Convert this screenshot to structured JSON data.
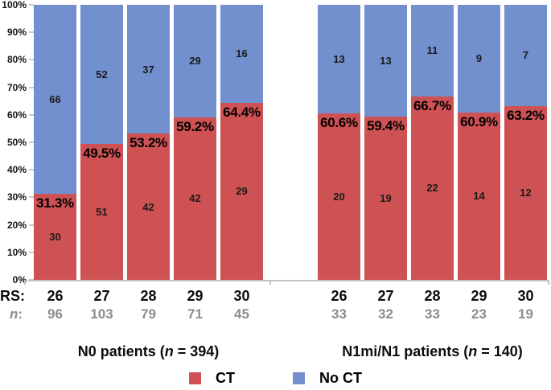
{
  "chart_data": {
    "type": "bar",
    "stacked": true,
    "orientation": "vertical",
    "grid": false,
    "ylim": [
      0,
      100
    ],
    "y_ticks": [
      "0%",
      "10%",
      "20%",
      "30%",
      "40%",
      "50%",
      "60%",
      "70%",
      "80%",
      "90%",
      "100%"
    ],
    "series_colors": {
      "ct": "#ce5254",
      "no_ct": "#7290cd"
    },
    "row_labels": {
      "rs": "RS:",
      "n_italic": "n",
      "n_suffix": ":"
    },
    "legend": [
      {
        "key": "ct",
        "label": "CT"
      },
      {
        "key": "no_ct",
        "label": "No CT"
      }
    ],
    "groups": [
      {
        "title": {
          "pre": "N0 patients (",
          "italic": "n",
          "post": " = 394)"
        },
        "bars": [
          {
            "rs": "26",
            "n": "96",
            "ct": 30,
            "no_ct": 66,
            "pct": 31.3,
            "pct_label": "31.3%"
          },
          {
            "rs": "27",
            "n": "103",
            "ct": 51,
            "no_ct": 52,
            "pct": 49.5,
            "pct_label": "49.5%"
          },
          {
            "rs": "28",
            "n": "79",
            "ct": 42,
            "no_ct": 37,
            "pct": 53.2,
            "pct_label": "53.2%"
          },
          {
            "rs": "29",
            "n": "71",
            "ct": 42,
            "no_ct": 29,
            "pct": 59.2,
            "pct_label": "59.2%"
          },
          {
            "rs": "30",
            "n": "45",
            "ct": 29,
            "no_ct": 16,
            "pct": 64.4,
            "pct_label": "64.4%"
          }
        ]
      },
      {
        "title": {
          "pre": "N1mi/N1 patients (",
          "italic": "n",
          "post": " = 140)"
        },
        "bars": [
          {
            "rs": "26",
            "n": "33",
            "ct": 20,
            "no_ct": 13,
            "pct": 60.6,
            "pct_label": "60.6%"
          },
          {
            "rs": "27",
            "n": "32",
            "ct": 19,
            "no_ct": 13,
            "pct": 59.4,
            "pct_label": "59.4%"
          },
          {
            "rs": "28",
            "n": "33",
            "ct": 22,
            "no_ct": 11,
            "pct": 66.7,
            "pct_label": "66.7%"
          },
          {
            "rs": "29",
            "n": "23",
            "ct": 14,
            "no_ct": 9,
            "pct": 60.9,
            "pct_label": "60.9%"
          },
          {
            "rs": "30",
            "n": "19",
            "ct": 12,
            "no_ct": 7,
            "pct": 63.2,
            "pct_label": "63.2%"
          }
        ]
      }
    ]
  }
}
